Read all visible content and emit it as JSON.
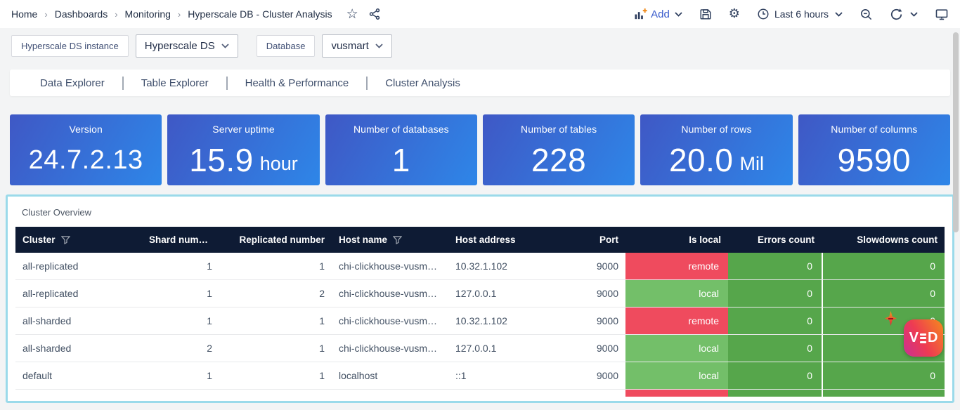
{
  "colors": {
    "red": "#ef4b5e",
    "green_light": "#73bf69",
    "green_dark": "#56a64b",
    "cyan_border": "#9bdaea",
    "navy_header": "#0e1b34",
    "stat_gradient_start": "#3f58c5",
    "stat_gradient_end": "#2e86e8",
    "accent_blue": "#3a5ccc",
    "orange": "#f08c1e"
  },
  "icons": {
    "star_icon": "☆",
    "settings_gear_icon": "⚙",
    "share_icon": "svg-share-alt",
    "add_panel_icon": "svg-bars-plus",
    "save_icon": "svg-floppy",
    "clock_icon": "svg-clock",
    "zoom_out_icon": "svg-magnifier-minus",
    "refresh_icon": "svg-circular-arrow",
    "tv_icon": "svg-monitor",
    "chevron_down_icon": "svg-chevron",
    "filter_funnel_icon": "svg-funnel",
    "sparkle_cursor_icon": "css-four-point-star"
  },
  "breadcrumb": {
    "separator": "›",
    "items": [
      "Home",
      "Dashboards",
      "Monitoring",
      "Hyperscale DB - Cluster Analysis"
    ]
  },
  "topbar": {
    "add_label": "Add",
    "time_label": "Last 6 hours"
  },
  "filters": {
    "instance_label": "Hyperscale DS instance",
    "instance_value": "Hyperscale DS",
    "database_label": "Database",
    "database_value": "vusmart"
  },
  "tabs": {
    "items": [
      "Data Explorer",
      "Table Explorer",
      "Health & Performance",
      "Cluster Analysis"
    ]
  },
  "stats": {
    "cards": [
      {
        "title": "Version",
        "value": "24.7.2.13",
        "unit": ""
      },
      {
        "title": "Server uptime",
        "value": "15.9",
        "unit": "hour"
      },
      {
        "title": "Number of databases",
        "value": "1",
        "unit": ""
      },
      {
        "title": "Number of tables",
        "value": "228",
        "unit": ""
      },
      {
        "title": "Number of rows",
        "value": "20.0",
        "unit": "Mil"
      },
      {
        "title": "Number of columns",
        "value": "9590",
        "unit": ""
      }
    ]
  },
  "cluster_panel": {
    "title": "Cluster Overview",
    "columns": [
      {
        "key": "cluster",
        "label": "Cluster",
        "align": "left",
        "filter": true
      },
      {
        "key": "shard",
        "label": "Shard number",
        "align": "right",
        "filter": false
      },
      {
        "key": "replicated",
        "label": "Replicated number",
        "align": "right",
        "filter": false
      },
      {
        "key": "host_name",
        "label": "Host name",
        "align": "left",
        "filter": true
      },
      {
        "key": "host_address",
        "label": "Host address",
        "align": "left",
        "filter": false
      },
      {
        "key": "port",
        "label": "Port",
        "align": "right",
        "filter": false
      },
      {
        "key": "is_local",
        "label": "Is local",
        "align": "right",
        "filter": false
      },
      {
        "key": "errors",
        "label": "Errors count",
        "align": "right",
        "filter": false
      },
      {
        "key": "slowdowns",
        "label": "Slowdowns count",
        "align": "right",
        "filter": false
      }
    ],
    "rows": [
      {
        "cluster": "all-replicated",
        "shard": "1",
        "replicated": "1",
        "host_name": "chi-clickhouse-vusmar…",
        "host_address": "10.32.1.102",
        "port": "9000",
        "is_local": "remote",
        "errors": "0",
        "slowdowns": "0"
      },
      {
        "cluster": "all-replicated",
        "shard": "1",
        "replicated": "2",
        "host_name": "chi-clickhouse-vusmar…",
        "host_address": "127.0.0.1",
        "port": "9000",
        "is_local": "local",
        "errors": "0",
        "slowdowns": "0"
      },
      {
        "cluster": "all-sharded",
        "shard": "1",
        "replicated": "1",
        "host_name": "chi-clickhouse-vusmar…",
        "host_address": "10.32.1.102",
        "port": "9000",
        "is_local": "remote",
        "errors": "0",
        "slowdowns": "0"
      },
      {
        "cluster": "all-sharded",
        "shard": "2",
        "replicated": "1",
        "host_name": "chi-clickhouse-vusmar…",
        "host_address": "127.0.0.1",
        "port": "9000",
        "is_local": "local",
        "errors": "0",
        "slowdowns": "0"
      },
      {
        "cluster": "default",
        "shard": "1",
        "replicated": "1",
        "host_name": "localhost",
        "host_address": "::1",
        "port": "9000",
        "is_local": "local",
        "errors": "0",
        "slowdowns": "0"
      }
    ],
    "partial_row": {
      "is_local_state": "remote"
    }
  },
  "watermark": {
    "letter_v": "V",
    "letter_d": "D"
  }
}
